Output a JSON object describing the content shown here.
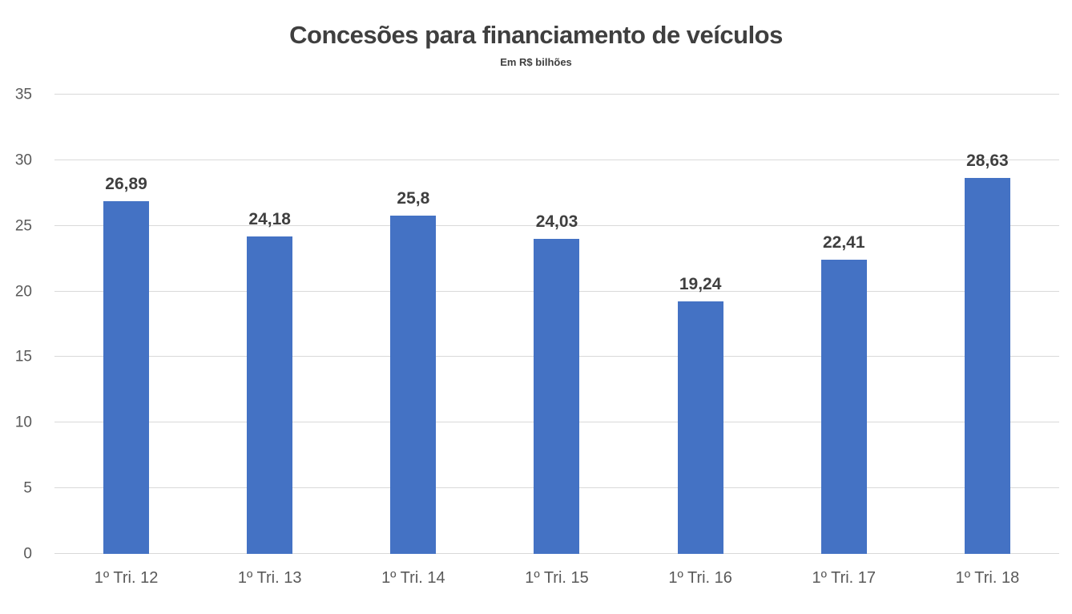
{
  "chart_data": {
    "type": "bar",
    "title": "Concesões para financiamento de veículos",
    "subtitle": "Em R$ bilhões",
    "categories": [
      "1º Tri. 12",
      "1º Tri. 13",
      "1º Tri. 14",
      "1º Tri. 15",
      "1º Tri. 16",
      "1º Tri. 17",
      "1º Tri. 18"
    ],
    "values": [
      26.89,
      24.18,
      25.8,
      24.03,
      19.24,
      22.41,
      28.63
    ],
    "value_labels": [
      "26,89",
      "24,18",
      "25,8",
      "24,03",
      "19,24",
      "22,41",
      "28,63"
    ],
    "xlabel": "",
    "ylabel": "",
    "ylim": [
      0,
      35
    ],
    "yticks": [
      0,
      5,
      10,
      15,
      20,
      25,
      30,
      35
    ],
    "grid": "horizontal",
    "legend": "none",
    "bar_color": "#4472c4",
    "grid_color": "#d9d9d9",
    "title_color": "#3f3f3f",
    "axis_text_color": "#595959"
  }
}
